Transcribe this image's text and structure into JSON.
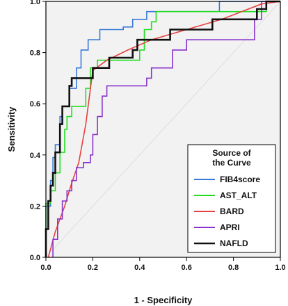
{
  "chart_data": {
    "type": "line",
    "title": "",
    "xlabel": "1 - Specificity",
    "ylabel": "Sensitivity",
    "xlim": [
      0,
      1
    ],
    "ylim": [
      0,
      1
    ],
    "x_ticks": [
      "0.0",
      "0.2",
      "0.4",
      "0.6",
      "0.8",
      "1.0"
    ],
    "y_ticks": [
      "0.0",
      "0.2",
      "0.4",
      "0.6",
      "0.8",
      "1.0"
    ],
    "grid": false,
    "background": "#f2f2f2",
    "legend": {
      "title_line1": "Source of",
      "title_line2": "the Curve",
      "placement": "bottom-right"
    },
    "series": [
      {
        "name": "FIB4score",
        "color": "#3a78d8",
        "points": [
          [
            0,
            0
          ],
          [
            0,
            0.2
          ],
          [
            0.02,
            0.2
          ],
          [
            0.02,
            0.3
          ],
          [
            0.03,
            0.3
          ],
          [
            0.03,
            0.39
          ],
          [
            0.04,
            0.39
          ],
          [
            0.04,
            0.44
          ],
          [
            0.06,
            0.44
          ],
          [
            0.06,
            0.55
          ],
          [
            0.07,
            0.55
          ],
          [
            0.07,
            0.59
          ],
          [
            0.1,
            0.59
          ],
          [
            0.1,
            0.66
          ],
          [
            0.13,
            0.66
          ],
          [
            0.13,
            0.74
          ],
          [
            0.15,
            0.74
          ],
          [
            0.15,
            0.81
          ],
          [
            0.18,
            0.81
          ],
          [
            0.18,
            0.85
          ],
          [
            0.23,
            0.85
          ],
          [
            0.23,
            0.89
          ],
          [
            0.33,
            0.89
          ],
          [
            0.33,
            0.9
          ],
          [
            0.37,
            0.9
          ],
          [
            0.37,
            0.93
          ],
          [
            0.43,
            0.93
          ],
          [
            0.43,
            0.96
          ],
          [
            0.74,
            0.96
          ],
          [
            0.74,
            1
          ],
          [
            1,
            1
          ]
        ]
      },
      {
        "name": "AST_ALT",
        "color": "#22dd22",
        "points": [
          [
            0,
            0
          ],
          [
            0,
            0.21
          ],
          [
            0.02,
            0.21
          ],
          [
            0.02,
            0.26
          ],
          [
            0.04,
            0.26
          ],
          [
            0.04,
            0.33
          ],
          [
            0.06,
            0.33
          ],
          [
            0.06,
            0.41
          ],
          [
            0.08,
            0.41
          ],
          [
            0.08,
            0.5
          ],
          [
            0.09,
            0.5
          ],
          [
            0.09,
            0.55
          ],
          [
            0.11,
            0.55
          ],
          [
            0.11,
            0.59
          ],
          [
            0.17,
            0.59
          ],
          [
            0.17,
            0.66
          ],
          [
            0.19,
            0.66
          ],
          [
            0.19,
            0.74
          ],
          [
            0.22,
            0.74
          ],
          [
            0.22,
            0.77
          ],
          [
            0.4,
            0.77
          ],
          [
            0.4,
            0.81
          ],
          [
            0.42,
            0.81
          ],
          [
            0.42,
            0.89
          ],
          [
            0.45,
            0.89
          ],
          [
            0.45,
            0.92
          ],
          [
            0.47,
            0.92
          ],
          [
            0.47,
            0.96
          ],
          [
            0.94,
            0.96
          ],
          [
            0.94,
            1
          ],
          [
            1,
            1
          ]
        ]
      },
      {
        "name": "BARD",
        "color": "#e84040",
        "points": [
          [
            0.01,
            0
          ],
          [
            0.04,
            0.1
          ],
          [
            0.08,
            0.2
          ],
          [
            0.11,
            0.29
          ],
          [
            0.14,
            0.37
          ],
          [
            0.17,
            0.52
          ],
          [
            0.2,
            0.73
          ],
          [
            0.26,
            0.77
          ],
          [
            0.35,
            0.81
          ],
          [
            0.45,
            0.85
          ],
          [
            0.6,
            0.89
          ],
          [
            0.75,
            0.93
          ],
          [
            0.92,
            0.99
          ],
          [
            1,
            1
          ]
        ]
      },
      {
        "name": "APRI",
        "color": "#8833cc",
        "points": [
          [
            0.03,
            0
          ],
          [
            0.03,
            0.07
          ],
          [
            0.05,
            0.07
          ],
          [
            0.05,
            0.15
          ],
          [
            0.07,
            0.15
          ],
          [
            0.07,
            0.22
          ],
          [
            0.09,
            0.22
          ],
          [
            0.09,
            0.26
          ],
          [
            0.11,
            0.26
          ],
          [
            0.11,
            0.3
          ],
          [
            0.13,
            0.3
          ],
          [
            0.13,
            0.35
          ],
          [
            0.16,
            0.35
          ],
          [
            0.16,
            0.37
          ],
          [
            0.19,
            0.37
          ],
          [
            0.19,
            0.4
          ],
          [
            0.2,
            0.4
          ],
          [
            0.2,
            0.48
          ],
          [
            0.22,
            0.48
          ],
          [
            0.22,
            0.55
          ],
          [
            0.24,
            0.55
          ],
          [
            0.24,
            0.63
          ],
          [
            0.26,
            0.63
          ],
          [
            0.26,
            0.67
          ],
          [
            0.43,
            0.67
          ],
          [
            0.43,
            0.7
          ],
          [
            0.45,
            0.7
          ],
          [
            0.45,
            0.74
          ],
          [
            0.54,
            0.74
          ],
          [
            0.54,
            0.81
          ],
          [
            0.6,
            0.81
          ],
          [
            0.6,
            0.85
          ],
          [
            0.89,
            0.85
          ],
          [
            0.89,
            0.93
          ],
          [
            0.92,
            0.93
          ],
          [
            0.92,
            1
          ],
          [
            1,
            1
          ]
        ]
      },
      {
        "name": "NAFLD",
        "color": "#111111",
        "points": [
          [
            0,
            0
          ],
          [
            0,
            0.11
          ],
          [
            0.01,
            0.11
          ],
          [
            0.01,
            0.22
          ],
          [
            0.02,
            0.22
          ],
          [
            0.02,
            0.28
          ],
          [
            0.03,
            0.28
          ],
          [
            0.03,
            0.33
          ],
          [
            0.04,
            0.33
          ],
          [
            0.04,
            0.41
          ],
          [
            0.06,
            0.41
          ],
          [
            0.06,
            0.52
          ],
          [
            0.07,
            0.52
          ],
          [
            0.07,
            0.59
          ],
          [
            0.1,
            0.59
          ],
          [
            0.1,
            0.67
          ],
          [
            0.11,
            0.67
          ],
          [
            0.11,
            0.7
          ],
          [
            0.2,
            0.7
          ],
          [
            0.2,
            0.74
          ],
          [
            0.27,
            0.74
          ],
          [
            0.27,
            0.78
          ],
          [
            0.37,
            0.78
          ],
          [
            0.37,
            0.81
          ],
          [
            0.39,
            0.81
          ],
          [
            0.39,
            0.85
          ],
          [
            0.53,
            0.85
          ],
          [
            0.53,
            0.89
          ],
          [
            0.71,
            0.89
          ],
          [
            0.71,
            0.93
          ],
          [
            0.9,
            0.93
          ],
          [
            0.9,
            0.97
          ],
          [
            0.94,
            0.97
          ],
          [
            0.94,
            1
          ],
          [
            1,
            1
          ]
        ]
      }
    ]
  }
}
